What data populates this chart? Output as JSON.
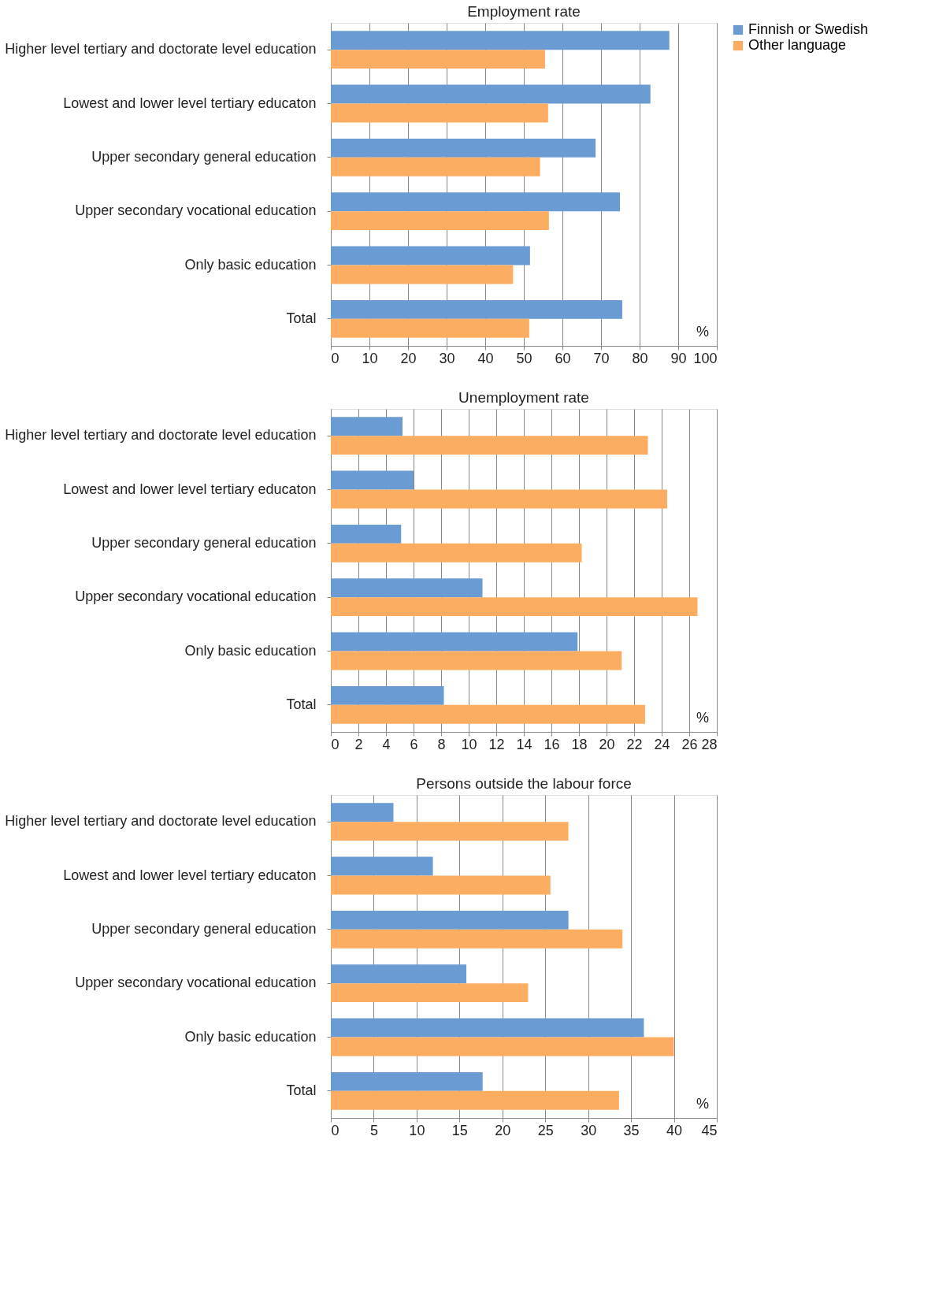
{
  "chart_data": [
    {
      "type": "bar",
      "orientation": "horizontal",
      "title": "Employment rate",
      "categories": [
        "Higher level tertiary and doctorate level education",
        "Lowest and lower level tertiary educaton",
        "Upper secondary general education",
        "Upper secondary vocational education",
        "Only basic education",
        "Total"
      ],
      "series": [
        {
          "name": "Finnish or Swedish",
          "color": "#6a9bd2",
          "values": [
            87.7,
            82.8,
            68.6,
            74.9,
            51.6,
            75.5
          ]
        },
        {
          "name": "Other language",
          "color": "#fcad62",
          "values": [
            55.5,
            56.3,
            54.2,
            56.5,
            47.2,
            51.4
          ]
        }
      ],
      "xlim": [
        0,
        100
      ],
      "xticks": [
        0,
        10,
        20,
        30,
        40,
        50,
        60,
        70,
        80,
        90,
        100
      ],
      "grid": "x",
      "legend": "top right",
      "annotations": [
        "%"
      ]
    },
    {
      "type": "bar",
      "orientation": "horizontal",
      "title": "Unemployment rate",
      "categories": [
        "Higher level tertiary and doctorate level education",
        "Lowest and lower level tertiary educaton",
        "Upper secondary general education",
        "Upper secondary vocational education",
        "Only basic education",
        "Total"
      ],
      "series": [
        {
          "color": "#6a9bd2",
          "values": [
            5.2,
            6.0,
            5.1,
            11.0,
            17.9,
            8.2
          ]
        },
        {
          "color": "#fcad62",
          "values": [
            23.0,
            24.4,
            18.2,
            26.6,
            21.1,
            22.8
          ]
        }
      ],
      "xlim": [
        0,
        28
      ],
      "xticks": [
        0,
        2,
        4,
        6,
        8,
        10,
        12,
        14,
        16,
        18,
        20,
        22,
        24,
        26,
        28
      ],
      "grid": "x",
      "annotations": [
        "%"
      ]
    },
    {
      "type": "bar",
      "orientation": "horizontal",
      "title": "Persons outside the labour force",
      "categories": [
        "Higher level tertiary and doctorate level education",
        "Lowest and lower level tertiary educaton",
        "Upper secondary general education",
        "Upper secondary vocational education",
        "Only basic education",
        "Total"
      ],
      "series": [
        {
          "color": "#6a9bd2",
          "values": [
            7.3,
            11.9,
            27.7,
            15.8,
            36.5,
            17.7
          ]
        },
        {
          "color": "#fcad62",
          "values": [
            27.7,
            25.6,
            34.0,
            23.0,
            40.0,
            33.6
          ]
        }
      ],
      "xlim": [
        0,
        45
      ],
      "xticks": [
        0,
        5,
        10,
        15,
        20,
        25,
        30,
        35,
        40,
        45
      ],
      "grid": "x",
      "annotations": [
        "%"
      ]
    }
  ]
}
